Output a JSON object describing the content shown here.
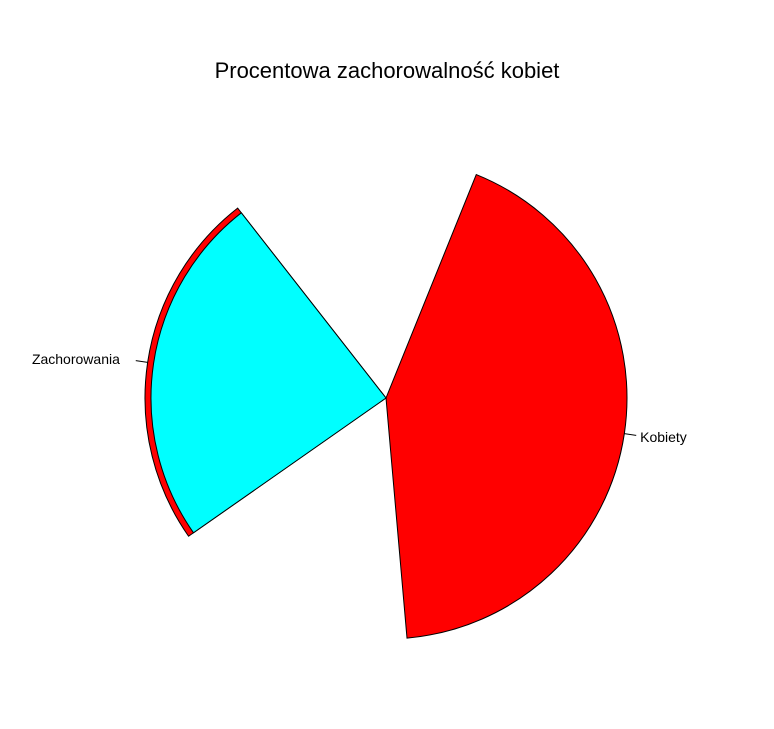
{
  "chart_data": {
    "type": "pie",
    "title": "Procentowa zachorowalność kobiet",
    "grid": false,
    "legend": "none",
    "slices": [
      {
        "label": "Kobiety",
        "start_deg": -68,
        "end_deg": 85,
        "color": "#ff0000"
      },
      {
        "label": "Zachorowania",
        "start_deg": 145,
        "end_deg": 232,
        "color": "#00ffff",
        "backing_color": "#ff0000"
      }
    ]
  }
}
